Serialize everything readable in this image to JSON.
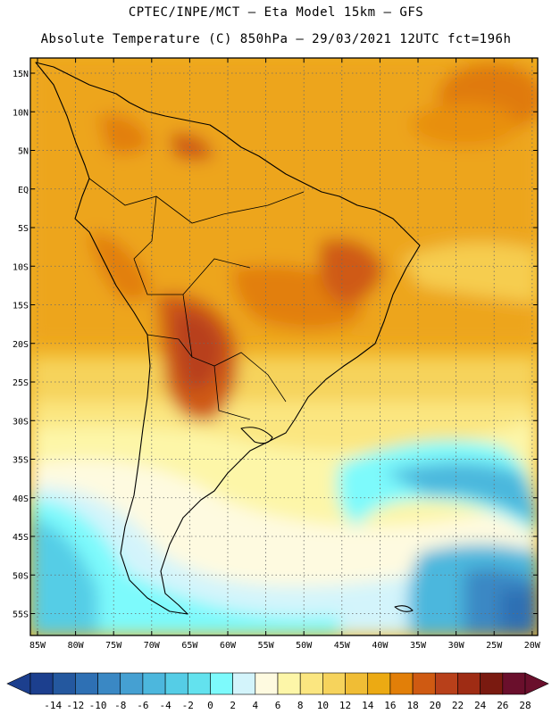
{
  "header": {
    "line1": "CPTEC/INPE/MCT –  Eta Model 15km – GFS",
    "line2": "Absolute Temperature (C) 850hPa – 29/03/2021 12UTC fct=196h"
  },
  "map": {
    "lat_labels": [
      "15N",
      "10N",
      "5N",
      "EQ",
      "5S",
      "10S",
      "15S",
      "20S",
      "25S",
      "30S",
      "35S",
      "40S",
      "45S",
      "50S",
      "55S"
    ],
    "lon_labels": [
      "85W",
      "80W",
      "75W",
      "70W",
      "65W",
      "60W",
      "55W",
      "50W",
      "45W",
      "40W",
      "35W",
      "30W",
      "25W",
      "20W"
    ]
  },
  "colorbar": {
    "colors": [
      "#1c3f8e",
      "#24589f",
      "#2e70b4",
      "#3a88c4",
      "#45a0d2",
      "#4cb7dd",
      "#55cde6",
      "#63e2ee",
      "#7dfafc",
      "#d3f4fb",
      "#fefae0",
      "#fdf6a8",
      "#fbe680",
      "#f6d35c",
      "#f0bd35",
      "#ecaa13",
      "#e27f08",
      "#cf5a12",
      "#b8401a",
      "#9f2c14",
      "#7a1a10",
      "#6a0f2c"
    ],
    "labels": [
      "-14",
      "-12",
      "-10",
      "-8",
      "-6",
      "-4",
      "-2",
      "0",
      "2",
      "4",
      "6",
      "8",
      "10",
      "12",
      "14",
      "16",
      "18",
      "20",
      "22",
      "24",
      "26",
      "28"
    ]
  }
}
